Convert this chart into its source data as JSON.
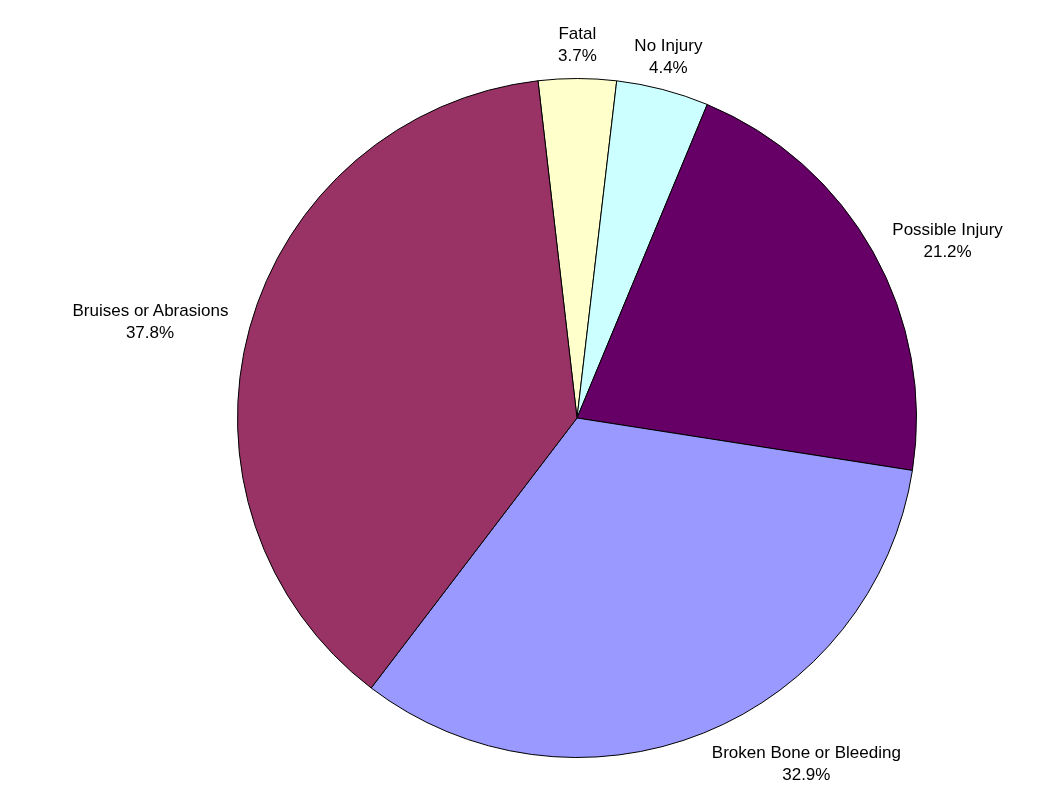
{
  "chart_data": {
    "type": "pie",
    "categories": [
      "Fatal",
      "No Injury",
      "Possible Injury",
      "Broken Bone or Bleeding",
      "Bruises or Abrasions"
    ],
    "values": [
      3.7,
      4.4,
      21.2,
      32.9,
      37.8
    ],
    "value_labels": [
      "3.7%",
      "4.4%",
      "21.2%",
      "32.9%",
      "37.8%"
    ],
    "colors": [
      "#ffffcc",
      "#ccffff",
      "#660066",
      "#9999ff",
      "#993366"
    ],
    "legend": false
  }
}
